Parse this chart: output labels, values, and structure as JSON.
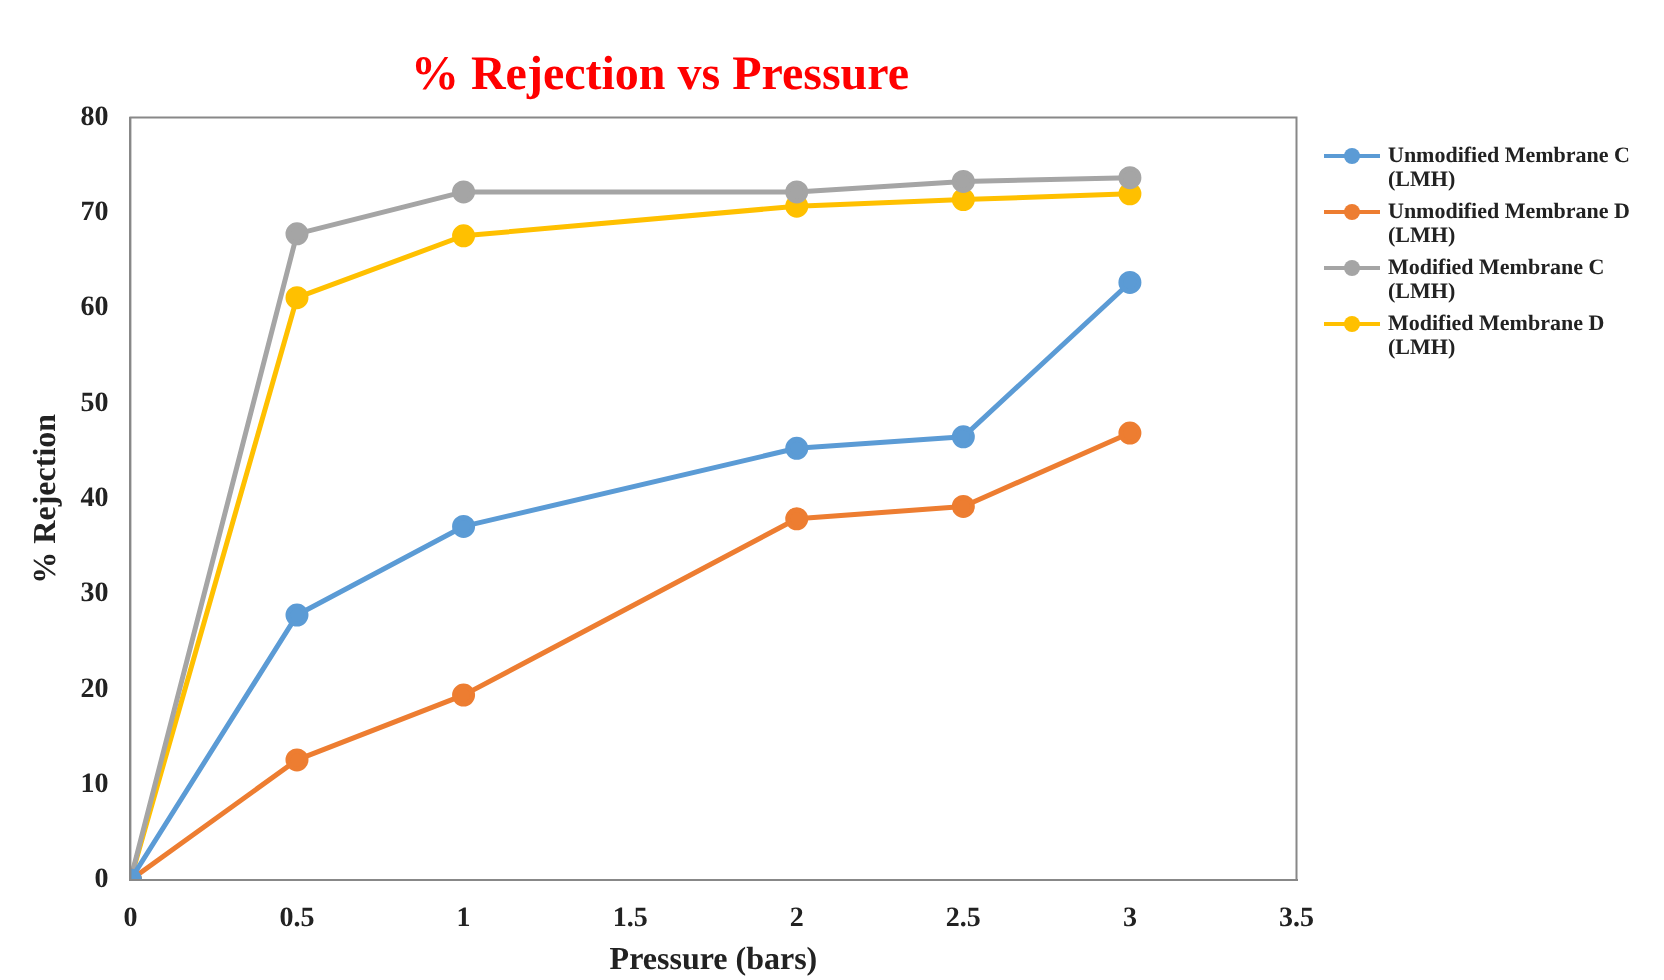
{
  "chart_data": {
    "type": "line",
    "title": "% Rejection vs Pressure",
    "xlabel": "Pressure (bars)",
    "ylabel": "% Rejection",
    "x": [
      0,
      0.5,
      1,
      2,
      2.5,
      3
    ],
    "xlim": [
      0,
      3.5
    ],
    "xticks": [
      0,
      0.5,
      1,
      1.5,
      2,
      2.5,
      3,
      3.5
    ],
    "ylim": [
      0,
      80
    ],
    "yticks": [
      0,
      10,
      20,
      30,
      40,
      50,
      60,
      70,
      80
    ],
    "grid": false,
    "legend": "right",
    "marker": "circle",
    "line_style": "solid",
    "series": [
      {
        "name": "Unmodified Membrane C (LMH)",
        "color": "#5b9bd5",
        "values": [
          0,
          27.8,
          37.1,
          45.3,
          46.5,
          62.7
        ]
      },
      {
        "name": "Unmodified Membrane D (LMH)",
        "color": "#ed7d31",
        "values": [
          0,
          12.6,
          19.4,
          37.9,
          39.2,
          46.9
        ]
      },
      {
        "name": "Modified Membrane C (LMH)",
        "color": "#a5a5a5",
        "values": [
          0,
          67.8,
          72.2,
          72.2,
          73.3,
          73.7
        ]
      },
      {
        "name": "Modified Membrane D (LMH)",
        "color": "#ffc000",
        "values": [
          0,
          61.1,
          67.6,
          70.7,
          71.4,
          72
        ]
      }
    ]
  }
}
